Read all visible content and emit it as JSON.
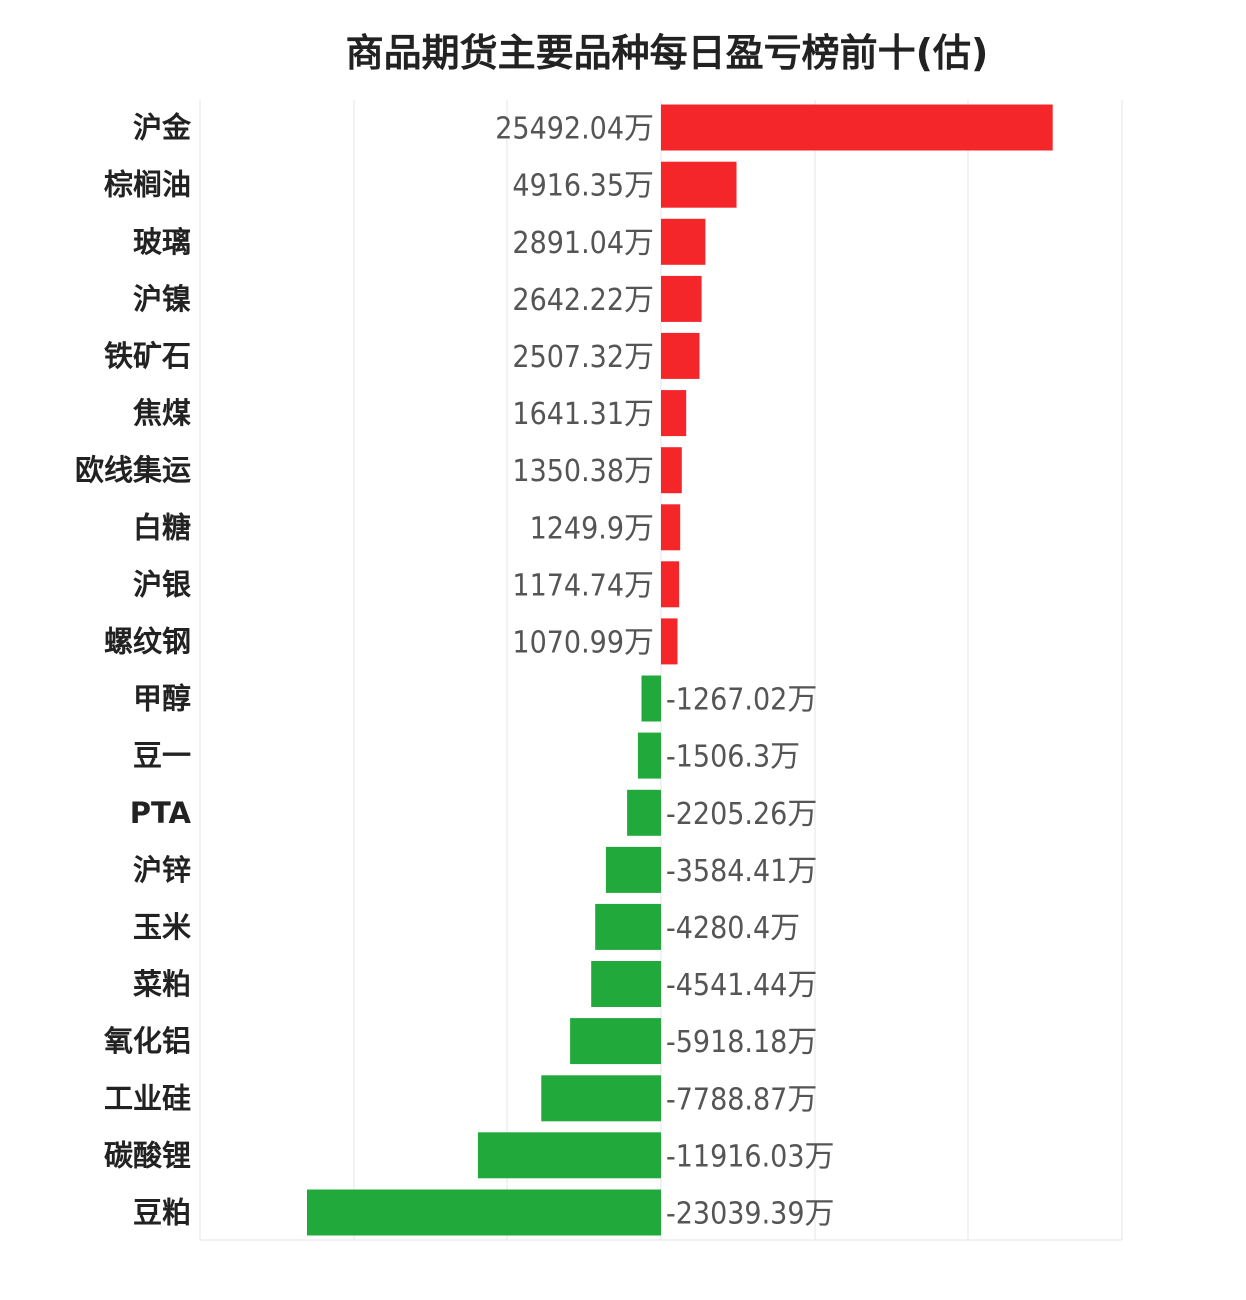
{
  "chart_data": {
    "type": "bar",
    "orientation": "horizontal",
    "title": "商品期货主要品种每日盈亏榜前十(估)",
    "unit": "万",
    "categories": [
      "沪金",
      "棕榈油",
      "玻璃",
      "沪镍",
      "铁矿石",
      "焦煤",
      "欧线集运",
      "白糖",
      "沪银",
      "螺纹钢",
      "甲醇",
      "豆一",
      "PTA",
      "沪锌",
      "玉米",
      "菜粕",
      "氧化铝",
      "工业硅",
      "碳酸锂",
      "豆粕"
    ],
    "values": [
      25492.04,
      4916.35,
      2891.04,
      2642.22,
      2507.32,
      1641.31,
      1350.38,
      1249.9,
      1174.74,
      1070.99,
      -1267.02,
      -1506.3,
      -2205.26,
      -3584.41,
      -4280.4,
      -4541.44,
      -5918.18,
      -7788.87,
      -11916.03,
      -23039.39
    ],
    "value_labels": [
      "25492.04万",
      "4916.35万",
      "2891.04万",
      "2642.22万",
      "2507.32万",
      "1641.31万",
      "1350.38万",
      "1249.9万",
      "1174.74万",
      "1070.99万",
      "-1267.02万",
      "-1506.3万",
      "-2205.26万",
      "-3584.41万",
      "-4280.4万",
      "-4541.44万",
      "-5918.18万",
      "-7788.87万",
      "-11916.03万",
      "-23039.39万"
    ],
    "xlim": [
      -30000,
      30000
    ],
    "grid": true,
    "colors": {
      "positive": "#f5262a",
      "negative": "#21a93b",
      "grid": "#e6e6e6"
    }
  }
}
